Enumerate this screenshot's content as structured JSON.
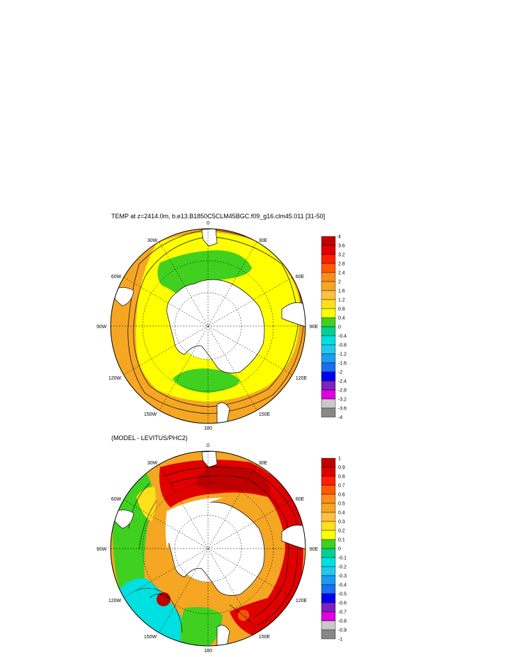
{
  "chart_data": [
    {
      "type": "heatmap",
      "projection": "south-polar-stereographic",
      "title": "TEMP at z=2414.0m, b.e13.B1850C5CLM45BGC.f09_g16.clm45.011 [31-50]",
      "longitude_labels": [
        "0",
        "30E",
        "60E",
        "90E",
        "120E",
        "150E",
        "180",
        "150W",
        "120W",
        "90W",
        "60W",
        "30W"
      ],
      "colorbar": {
        "levels": [
          "4",
          "3.6",
          "3.2",
          "2.8",
          "2.4",
          "2",
          "1.6",
          "1.2",
          "0.8",
          "0.4",
          "0",
          "-0.4",
          "-0.8",
          "-1.2",
          "-1.6",
          "-2",
          "-2.4",
          "-2.8",
          "-3.2",
          "-3.6",
          "-4"
        ],
        "colors": [
          "#c00000",
          "#e00000",
          "#ff2000",
          "#ff5a00",
          "#ff8c1a",
          "#f5a623",
          "#ffc040",
          "#ffe01a",
          "#ffff00",
          "#40d020",
          "#00d090",
          "#00e0e0",
          "#20c8f0",
          "#1a9cf0",
          "#1a6ef0",
          "#0000f0",
          "#8020c0",
          "#e000e0",
          "#c8c8c8",
          "#888888"
        ]
      }
    },
    {
      "type": "heatmap",
      "projection": "south-polar-stereographic",
      "title": "(MODEL - LEVITUS/PHC2)",
      "longitude_labels": [
        "0",
        "30E",
        "60E",
        "90E",
        "120E",
        "150E",
        "180",
        "150W",
        "120W",
        "90W",
        "60W",
        "30W"
      ],
      "colorbar": {
        "levels": [
          "1",
          "0.9",
          "0.8",
          "0.7",
          "0.6",
          "0.5",
          "0.4",
          "0.3",
          "0.2",
          "0.1",
          "0",
          "-0.1",
          "-0.2",
          "-0.3",
          "-0.4",
          "-0.5",
          "-0.6",
          "-0.7",
          "-0.8",
          "-0.9",
          "-1"
        ],
        "colors": [
          "#c00000",
          "#e00000",
          "#ff2000",
          "#ff5a00",
          "#ff8c1a",
          "#f5a623",
          "#ffc040",
          "#ffe01a",
          "#ffff00",
          "#40d020",
          "#00d090",
          "#00e0e0",
          "#20c8f0",
          "#1a9cf0",
          "#1a6ef0",
          "#0000f0",
          "#8020c0",
          "#e000e0",
          "#c8c8c8",
          "#888888"
        ]
      }
    }
  ]
}
